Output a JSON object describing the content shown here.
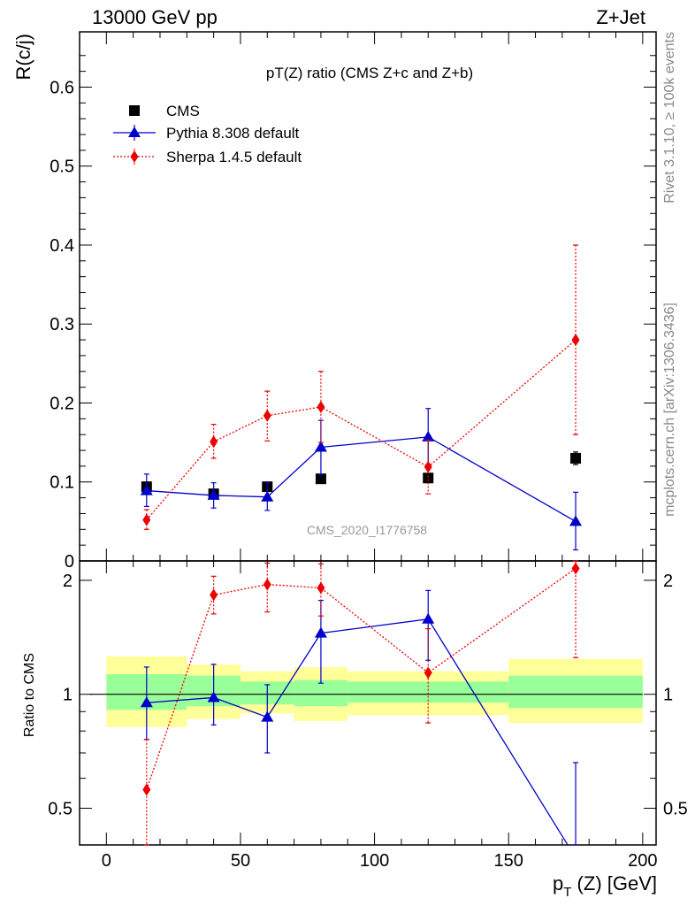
{
  "header": {
    "left": "13000 GeV pp",
    "right": "Z+Jet"
  },
  "side_labels": {
    "rivet": "Rivet 3.1.10, ≥ 100k events",
    "mcplots": "mcplots.cern.ch [arXiv:1306.3436]"
  },
  "chart_data": {
    "type": "scatter",
    "title": "pT(Z) ratio (CMS  Z+c and Z+b)",
    "watermark": "CMS_2020_I1776758",
    "xlabel": "p_T (Z) [GeV]",
    "xlabel_main": "p",
    "xlabel_sub": "T",
    "xlabel_rest": " (Z) [GeV]",
    "ylabel": "R(c/j)",
    "ratio_ylabel": "Ratio to CMS",
    "xlim": [
      -10,
      205
    ],
    "ylim": [
      0,
      0.67
    ],
    "ratio_ylim": [
      0.4,
      2.25
    ],
    "xticks": [
      0,
      50,
      100,
      150,
      200
    ],
    "yticks": [
      0,
      0.1,
      0.2,
      0.3,
      0.4,
      0.5,
      0.6
    ],
    "ytick_labels": [
      "0",
      "0.1",
      "0.2",
      "0.3",
      "0.4",
      "0.5",
      "0.6"
    ],
    "ratio_yticks": [
      0.5,
      1,
      2
    ],
    "ratio_ytick_labels": [
      "0.5",
      "1",
      "2"
    ],
    "legend_position": "top-left",
    "bins": [
      [
        0,
        30
      ],
      [
        30,
        50
      ],
      [
        50,
        70
      ],
      [
        70,
        90
      ],
      [
        90,
        150
      ],
      [
        150,
        200
      ]
    ],
    "x": [
      15,
      40,
      60,
      80,
      120,
      175
    ],
    "band_inner": [
      [
        0.91,
        1.13
      ],
      [
        0.93,
        1.12
      ],
      [
        0.94,
        1.08
      ],
      [
        0.93,
        1.09
      ],
      [
        0.95,
        1.08
      ],
      [
        0.92,
        1.12
      ]
    ],
    "band_outer": [
      [
        0.82,
        1.26
      ],
      [
        0.86,
        1.2
      ],
      [
        0.89,
        1.15
      ],
      [
        0.85,
        1.18
      ],
      [
        0.88,
        1.15
      ],
      [
        0.84,
        1.24
      ]
    ],
    "series": [
      {
        "name": "CMS",
        "color": "#000000",
        "marker": "square",
        "line": "none",
        "y": [
          0.094,
          0.085,
          0.094,
          0.104,
          0.105,
          0.13
        ],
        "yerr": [
          [
            0.005,
            0.005
          ],
          [
            0.004,
            0.004
          ],
          [
            0.004,
            0.004
          ],
          [
            0.005,
            0.005
          ],
          [
            0.005,
            0.005
          ],
          [
            0.008,
            0.008
          ]
        ],
        "ratio": [
          1,
          1,
          1,
          1,
          1,
          1
        ],
        "ratio_err": [
          [
            0,
            0
          ],
          [
            0,
            0
          ],
          [
            0,
            0
          ],
          [
            0,
            0
          ],
          [
            0,
            0
          ],
          [
            0,
            0
          ]
        ]
      },
      {
        "name": "Pythia 8.308 default",
        "color": "#0000cc",
        "marker": "triangle",
        "line": "solid",
        "y": [
          0.089,
          0.083,
          0.081,
          0.144,
          0.157,
          0.05
        ],
        "yerr": [
          [
            0.02,
            0.021
          ],
          [
            0.016,
            0.016
          ],
          [
            0.017,
            0.018
          ],
          [
            0.035,
            0.034
          ],
          [
            0.035,
            0.036
          ],
          [
            0.036,
            0.037
          ]
        ],
        "ratio": [
          0.95,
          0.98,
          0.87,
          1.45,
          1.58,
          0.37
        ],
        "ratio_err": [
          [
            0.19,
            0.23
          ],
          [
            0.15,
            0.22
          ],
          [
            0.17,
            0.19
          ],
          [
            0.38,
            0.32
          ],
          [
            0.35,
            0.3
          ],
          [
            0.28,
            0.29
          ]
        ]
      },
      {
        "name": "Sherpa 1.4.5 default",
        "color": "#ee0000",
        "marker": "diamond",
        "line": "dotted",
        "y": [
          0.052,
          0.151,
          0.184,
          0.195,
          0.119,
          0.28
        ],
        "yerr": [
          [
            0.012,
            0.013
          ],
          [
            0.021,
            0.022
          ],
          [
            0.032,
            0.031
          ],
          [
            0.045,
            0.045
          ],
          [
            0.034,
            0.034
          ],
          [
            0.12,
            0.12
          ]
        ],
        "ratio": [
          0.56,
          1.83,
          1.95,
          1.91,
          1.14,
          2.15
        ],
        "ratio_err": [
          [
            0.2,
            0.2
          ],
          [
            0.2,
            0.22
          ],
          [
            0.3,
            0.27
          ],
          [
            0.3,
            0.3
          ],
          [
            0.3,
            0.35
          ],
          [
            0.9,
            0.35
          ]
        ]
      }
    ]
  }
}
